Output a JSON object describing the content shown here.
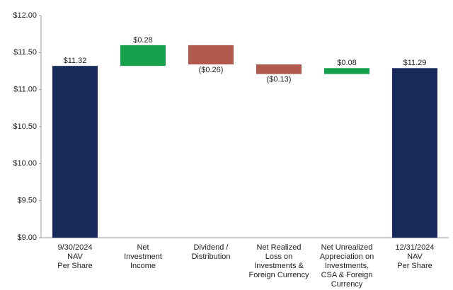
{
  "chart_data": {
    "type": "waterfall",
    "categories": [
      [
        "9/30/2024",
        "NAV",
        "Per Share"
      ],
      [
        "Net",
        "Investment",
        "Income"
      ],
      [
        "Dividend /",
        "Distribution"
      ],
      [
        "Net Realized",
        "Loss on",
        "Investments &",
        "Foreign Currency"
      ],
      [
        "Net Unrealized",
        "Appreciation on",
        "Investments,",
        "CSA & Foreign",
        "Currency"
      ],
      [
        "12/31/2024",
        "NAV",
        "Per Share"
      ]
    ],
    "measure": [
      "total",
      "relative",
      "relative",
      "relative",
      "relative",
      "total"
    ],
    "values": [
      11.32,
      0.28,
      -0.26,
      -0.13,
      0.08,
      11.29
    ],
    "value_labels": [
      "$11.32",
      "$0.28",
      "($0.26)",
      "($0.13)",
      "$0.08",
      "$11.29"
    ],
    "colors": {
      "total": "#172a5a",
      "increase": "#16a04b",
      "decrease": "#b05a4b"
    },
    "ylim": [
      9,
      12
    ],
    "yticks": [
      {
        "value": 9,
        "label": "$9.00"
      },
      {
        "value": 9.5,
        "label": "$9.50"
      },
      {
        "value": 10,
        "label": "$10.00"
      },
      {
        "value": 10.5,
        "label": "$10.50"
      },
      {
        "value": 11,
        "label": "$11.00"
      },
      {
        "value": 11.5,
        "label": "$11.50"
      },
      {
        "value": 12,
        "label": "$12.00"
      }
    ],
    "grid": false
  }
}
